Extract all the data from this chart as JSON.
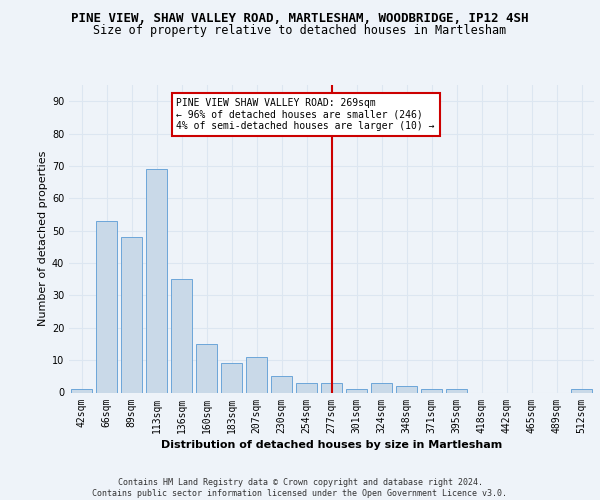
{
  "title_line1": "PINE VIEW, SHAW VALLEY ROAD, MARTLESHAM, WOODBRIDGE, IP12 4SH",
  "title_line2": "Size of property relative to detached houses in Martlesham",
  "xlabel": "Distribution of detached houses by size in Martlesham",
  "ylabel": "Number of detached properties",
  "bin_labels": [
    "42sqm",
    "66sqm",
    "89sqm",
    "113sqm",
    "136sqm",
    "160sqm",
    "183sqm",
    "207sqm",
    "230sqm",
    "254sqm",
    "277sqm",
    "301sqm",
    "324sqm",
    "348sqm",
    "371sqm",
    "395sqm",
    "418sqm",
    "442sqm",
    "465sqm",
    "489sqm",
    "512sqm"
  ],
  "bar_values": [
    1,
    53,
    48,
    69,
    35,
    15,
    9,
    11,
    5,
    3,
    3,
    1,
    3,
    2,
    1,
    1,
    0,
    0,
    0,
    0,
    1
  ],
  "bar_color": "#c9d9e8",
  "bar_edge_color": "#5b9bd5",
  "property_line_index": 10,
  "property_line_color": "#cc0000",
  "annotation_text": "PINE VIEW SHAW VALLEY ROAD: 269sqm\n← 96% of detached houses are smaller (246)\n4% of semi-detached houses are larger (10) →",
  "annotation_box_color": "#ffffff",
  "annotation_box_edge_color": "#cc0000",
  "ylim": [
    0,
    95
  ],
  "yticks": [
    0,
    10,
    20,
    30,
    40,
    50,
    60,
    70,
    80,
    90
  ],
  "grid_color": "#dce6f1",
  "background_color": "#eef3f9",
  "footer_text": "Contains HM Land Registry data © Crown copyright and database right 2024.\nContains public sector information licensed under the Open Government Licence v3.0.",
  "title_fontsize": 9,
  "subtitle_fontsize": 8.5,
  "axis_label_fontsize": 8,
  "tick_fontsize": 7,
  "annotation_fontsize": 7,
  "footer_fontsize": 6
}
